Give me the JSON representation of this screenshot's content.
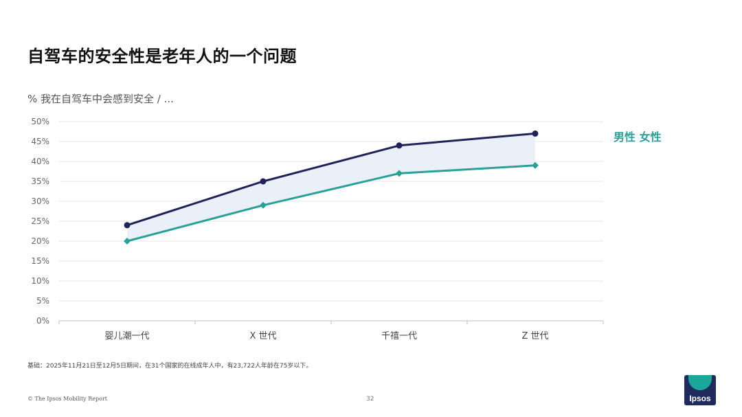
{
  "page": {
    "title": "自驾车的安全性是老年人的一个问题",
    "subtitle": "% 我在自驾车中会感到安全 / ...",
    "source": "基础：2025年11月21日至12月5日期间，在31个国家的在线成年人中，有23,722人年龄在75岁以下。",
    "footer": "© The Ipsos Mobility Report",
    "page_number": "32",
    "logo_text": "Ipsos"
  },
  "colors": {
    "male": "#1f2358",
    "female": "#2aa198",
    "band": "#e9f0f7",
    "grid": "#e6e6e6",
    "axis": "#bfbfbf"
  },
  "chart_data": {
    "type": "line",
    "categories": [
      "婴儿潮一代",
      "X 世代",
      "千禧一代",
      "Z 世代"
    ],
    "series": [
      {
        "name": "男性",
        "marker": "circle",
        "values": [
          24,
          35,
          44,
          47
        ]
      },
      {
        "name": "女性",
        "marker": "diamond",
        "values": [
          20,
          29,
          37,
          39
        ]
      }
    ],
    "legend_text": "男性 女性",
    "legend_position": "right",
    "ylim": [
      0,
      50
    ],
    "yticks": [
      "0%",
      "5%",
      "10%",
      "15%",
      "20%",
      "25%",
      "30%",
      "35%",
      "40%",
      "45%",
      "50%"
    ],
    "grid": true,
    "shaded_band_between_series": true
  }
}
